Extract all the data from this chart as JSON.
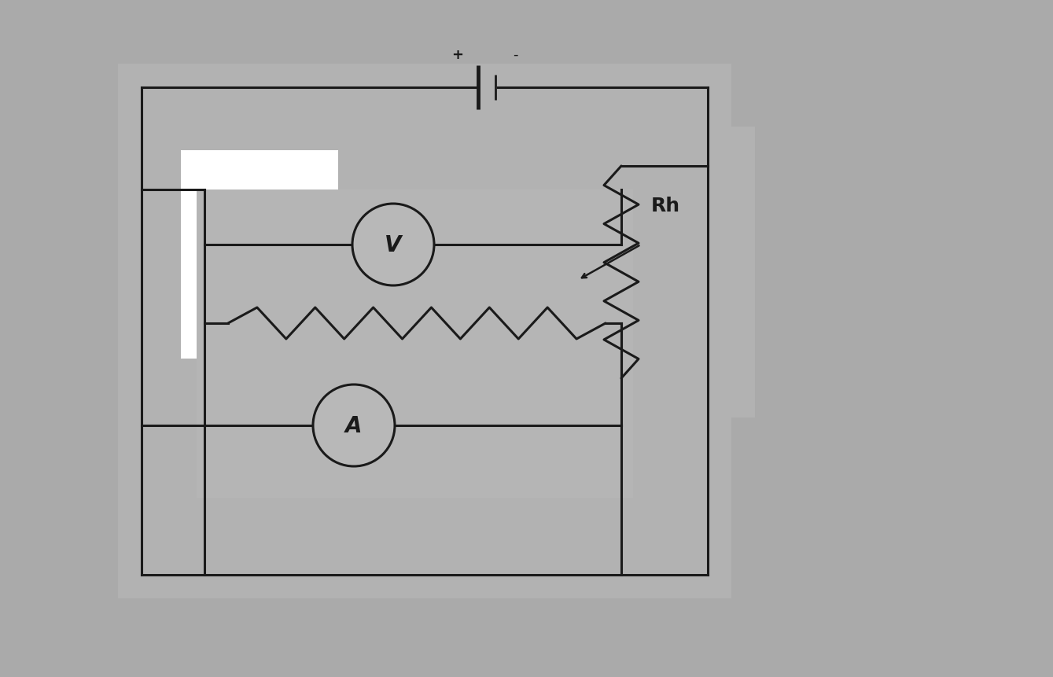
{
  "background_color": "#aaaaaa",
  "panel1_color": "#b8b8b8",
  "panel2_color": "#b8b8b8",
  "white_area_color": "#ffffff",
  "inner_panel_color": "#b8b8b8",
  "line_color": "#1a1a1a",
  "circle_bg": "#b8b8b8",
  "lw": 2.2,
  "battery_plus": "+",
  "battery_minus": "-",
  "voltmeter_label": "V",
  "ammeter_label": "A",
  "rh_label": "Rh"
}
